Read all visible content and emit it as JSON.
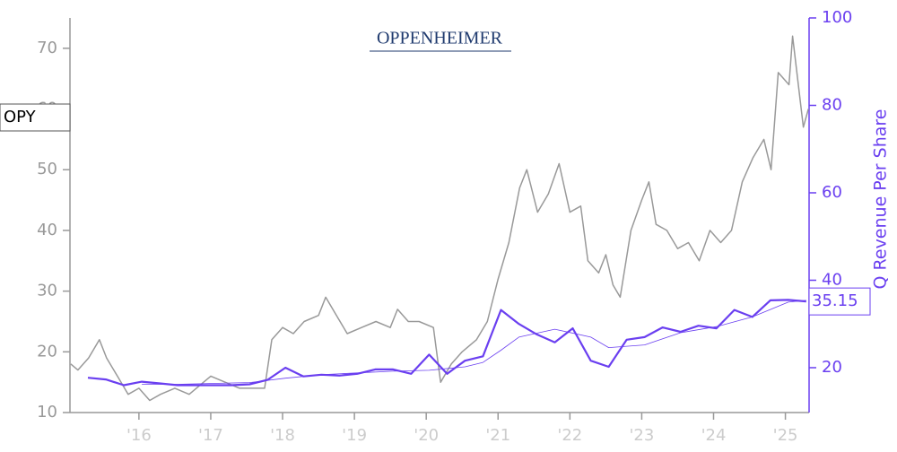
{
  "chart_data": {
    "type": "line",
    "logo": "OPPENHEIMER",
    "ticker": "OPY",
    "y2label": "Q Revenue Per Share",
    "xlim": [
      2015.04,
      2025.33
    ],
    "xticks": [
      {
        "value": 2016,
        "label": "'16"
      },
      {
        "value": 2017,
        "label": "'17"
      },
      {
        "value": 2018,
        "label": "'18"
      },
      {
        "value": 2019,
        "label": "'19"
      },
      {
        "value": 2020,
        "label": "'20"
      },
      {
        "value": 2021,
        "label": "'21"
      },
      {
        "value": 2022,
        "label": "'22"
      },
      {
        "value": 2023,
        "label": "'23"
      },
      {
        "value": 2024,
        "label": "'24"
      },
      {
        "value": 2025,
        "label": "'25"
      }
    ],
    "ylim": [
      10,
      75
    ],
    "yticks": [
      10,
      20,
      30,
      40,
      50,
      60,
      70
    ],
    "y2lim": [
      9.74,
      100
    ],
    "y2ticks": [
      20,
      40,
      60,
      80,
      100
    ],
    "series": [
      {
        "color": "#999999",
        "axis": "y",
        "width": 1.5,
        "x": [
          2015.05,
          2015.15,
          2015.3,
          2015.45,
          2015.55,
          2015.7,
          2015.85,
          2016.0,
          2016.15,
          2016.3,
          2016.5,
          2016.7,
          2016.9,
          2017.0,
          2017.2,
          2017.4,
          2017.6,
          2017.75,
          2017.85,
          2018.0,
          2018.15,
          2018.3,
          2018.5,
          2018.6,
          2018.75,
          2018.9,
          2019.1,
          2019.3,
          2019.5,
          2019.6,
          2019.75,
          2019.9,
          2020.1,
          2020.2,
          2020.35,
          2020.5,
          2020.7,
          2020.85,
          2021.0,
          2021.15,
          2021.3,
          2021.4,
          2021.55,
          2021.7,
          2021.85,
          2022.0,
          2022.15,
          2022.25,
          2022.4,
          2022.5,
          2022.6,
          2022.7,
          2022.85,
          2023.0,
          2023.1,
          2023.2,
          2023.35,
          2023.5,
          2023.65,
          2023.8,
          2023.95,
          2024.1,
          2024.25,
          2024.4,
          2024.55,
          2024.7,
          2024.8,
          2024.9,
          2025.05,
          2025.1,
          2025.2,
          2025.25,
          2025.32
        ],
        "values": [
          18,
          17,
          19,
          22,
          19,
          16,
          13,
          14,
          12,
          13,
          14,
          13,
          15,
          16,
          15,
          14,
          14,
          14,
          22,
          24,
          23,
          25,
          26,
          29,
          26,
          23,
          24,
          25,
          24,
          27,
          25,
          25,
          24,
          15,
          18,
          20,
          22,
          25,
          32,
          38,
          47,
          50,
          43,
          46,
          51,
          43,
          44,
          35,
          33,
          36,
          31,
          29,
          40,
          45,
          48,
          41,
          40,
          37,
          38,
          35,
          40,
          38,
          40,
          48,
          52,
          55,
          50,
          66,
          64,
          72,
          62,
          57,
          60
        ]
      },
      {
        "color": "#6a3ff0",
        "axis": "y2",
        "width": 2.2,
        "x": [
          2015.29,
          2015.54,
          2015.79,
          2016.04,
          2016.29,
          2016.54,
          2016.79,
          2017.04,
          2017.29,
          2017.54,
          2017.79,
          2018.04,
          2018.29,
          2018.54,
          2018.79,
          2019.04,
          2019.29,
          2019.54,
          2019.79,
          2020.04,
          2020.29,
          2020.54,
          2020.79,
          2021.04,
          2021.29,
          2021.54,
          2021.79,
          2022.04,
          2022.29,
          2022.54,
          2022.79,
          2023.04,
          2023.29,
          2023.54,
          2023.79,
          2024.04,
          2024.29,
          2024.54,
          2024.79,
          2025.04,
          2025.29
        ],
        "values": [
          17.7,
          17.3,
          16,
          16.8,
          16.4,
          16,
          16,
          16,
          16,
          16.2,
          17.2,
          20,
          18,
          18.4,
          18.2,
          18.6,
          19.6,
          19.6,
          18.6,
          23,
          18.6,
          21.6,
          22.6,
          33.2,
          30,
          27.6,
          25.8,
          29,
          21.6,
          20.2,
          26.4,
          27,
          29.2,
          28.2,
          29.6,
          29,
          33.2,
          31.6,
          35.4,
          35.5,
          35.15
        ]
      },
      {
        "color": "#6a3ff0",
        "axis": "y2",
        "width": 0.8,
        "x": [
          2016.04,
          2016.54,
          2017.04,
          2017.54,
          2018.04,
          2018.54,
          2019.04,
          2019.54,
          2020.04,
          2020.54,
          2020.79,
          2021.04,
          2021.29,
          2021.79,
          2022.29,
          2022.54,
          2023.04,
          2023.54,
          2024.04,
          2024.54,
          2025.04,
          2025.29
        ],
        "values": [
          16.2,
          16.2,
          16.4,
          16.6,
          17.6,
          18.4,
          18.8,
          19.2,
          19.4,
          20.2,
          21.2,
          24,
          27,
          28.8,
          27,
          24.6,
          25.2,
          28,
          29.4,
          31.6,
          35,
          35.4
        ]
      }
    ]
  }
}
